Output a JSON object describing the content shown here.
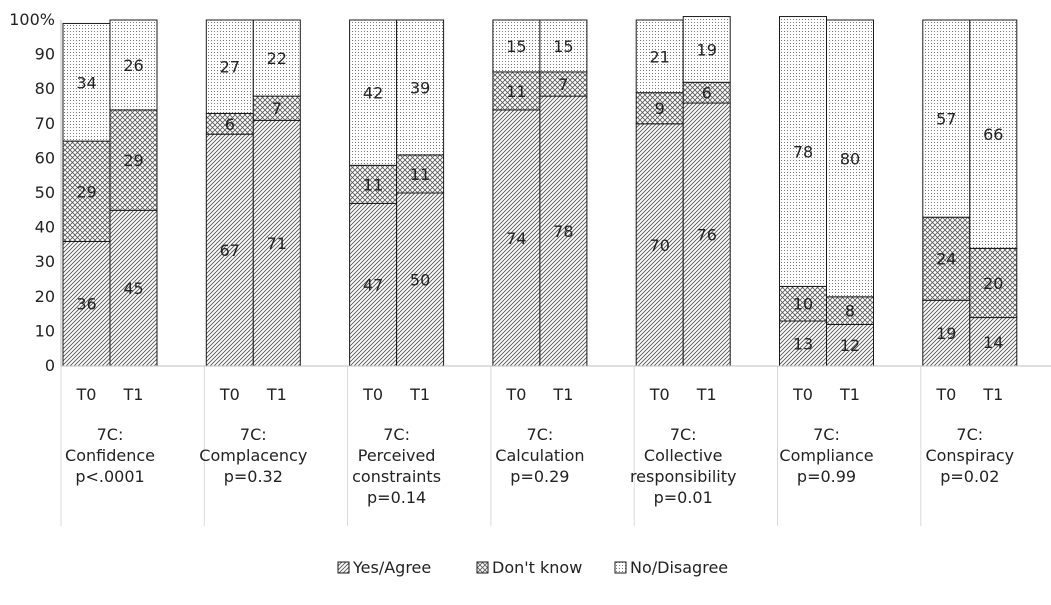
{
  "chart_data": {
    "type": "bar",
    "stacked": true,
    "y_ticks": [
      "0",
      "10",
      "20",
      "30",
      "40",
      "50",
      "60",
      "70",
      "80",
      "90",
      "100%"
    ],
    "ylim": [
      0,
      100
    ],
    "grid": false,
    "legend_position": "bottom-center",
    "groups": [
      {
        "label": [
          "7C:",
          "Confidence",
          "p<.0001"
        ],
        "bars": [
          {
            "label": "T0",
            "values": [
              36,
              29,
              34
            ]
          },
          {
            "label": "T1",
            "values": [
              45,
              29,
              26
            ]
          }
        ]
      },
      {
        "label": [
          "7C:",
          "Complacency",
          "p=0.32"
        ],
        "bars": [
          {
            "label": "T0",
            "values": [
              67,
              6,
              27
            ]
          },
          {
            "label": "T1",
            "values": [
              71,
              7,
              22
            ]
          }
        ]
      },
      {
        "label": [
          "7C:",
          "Perceived",
          "constraints",
          "p=0.14"
        ],
        "bars": [
          {
            "label": "T0",
            "values": [
              47,
              11,
              42
            ]
          },
          {
            "label": "T1",
            "values": [
              50,
              11,
              39
            ]
          }
        ]
      },
      {
        "label": [
          "7C:",
          "Calculation",
          "p=0.29"
        ],
        "bars": [
          {
            "label": "T0",
            "values": [
              74,
              11,
              15
            ]
          },
          {
            "label": "T1",
            "values": [
              78,
              7,
              15
            ]
          }
        ]
      },
      {
        "label": [
          "7C:",
          "Collective",
          "responsibility",
          "p=0.01"
        ],
        "bars": [
          {
            "label": "T0",
            "values": [
              70,
              9,
              21
            ]
          },
          {
            "label": "T1",
            "values": [
              76,
              6,
              19
            ]
          }
        ]
      },
      {
        "label": [
          "7C:",
          "Compliance",
          "p=0.99"
        ],
        "bars": [
          {
            "label": "T0",
            "values": [
              13,
              10,
              78
            ]
          },
          {
            "label": "T1",
            "values": [
              12,
              8,
              80
            ]
          }
        ]
      },
      {
        "label": [
          "7C:",
          "Conspiracy",
          "p=0.02"
        ],
        "bars": [
          {
            "label": "T0",
            "values": [
              19,
              24,
              57
            ]
          },
          {
            "label": "T1",
            "values": [
              14,
              20,
              66
            ]
          }
        ]
      }
    ],
    "series": [
      {
        "name": "Yes/Agree",
        "pattern": "diagonal-hatch"
      },
      {
        "name": "Don't know",
        "pattern": "crosshatch"
      },
      {
        "name": "No/Disagree",
        "pattern": "dotted"
      }
    ]
  }
}
